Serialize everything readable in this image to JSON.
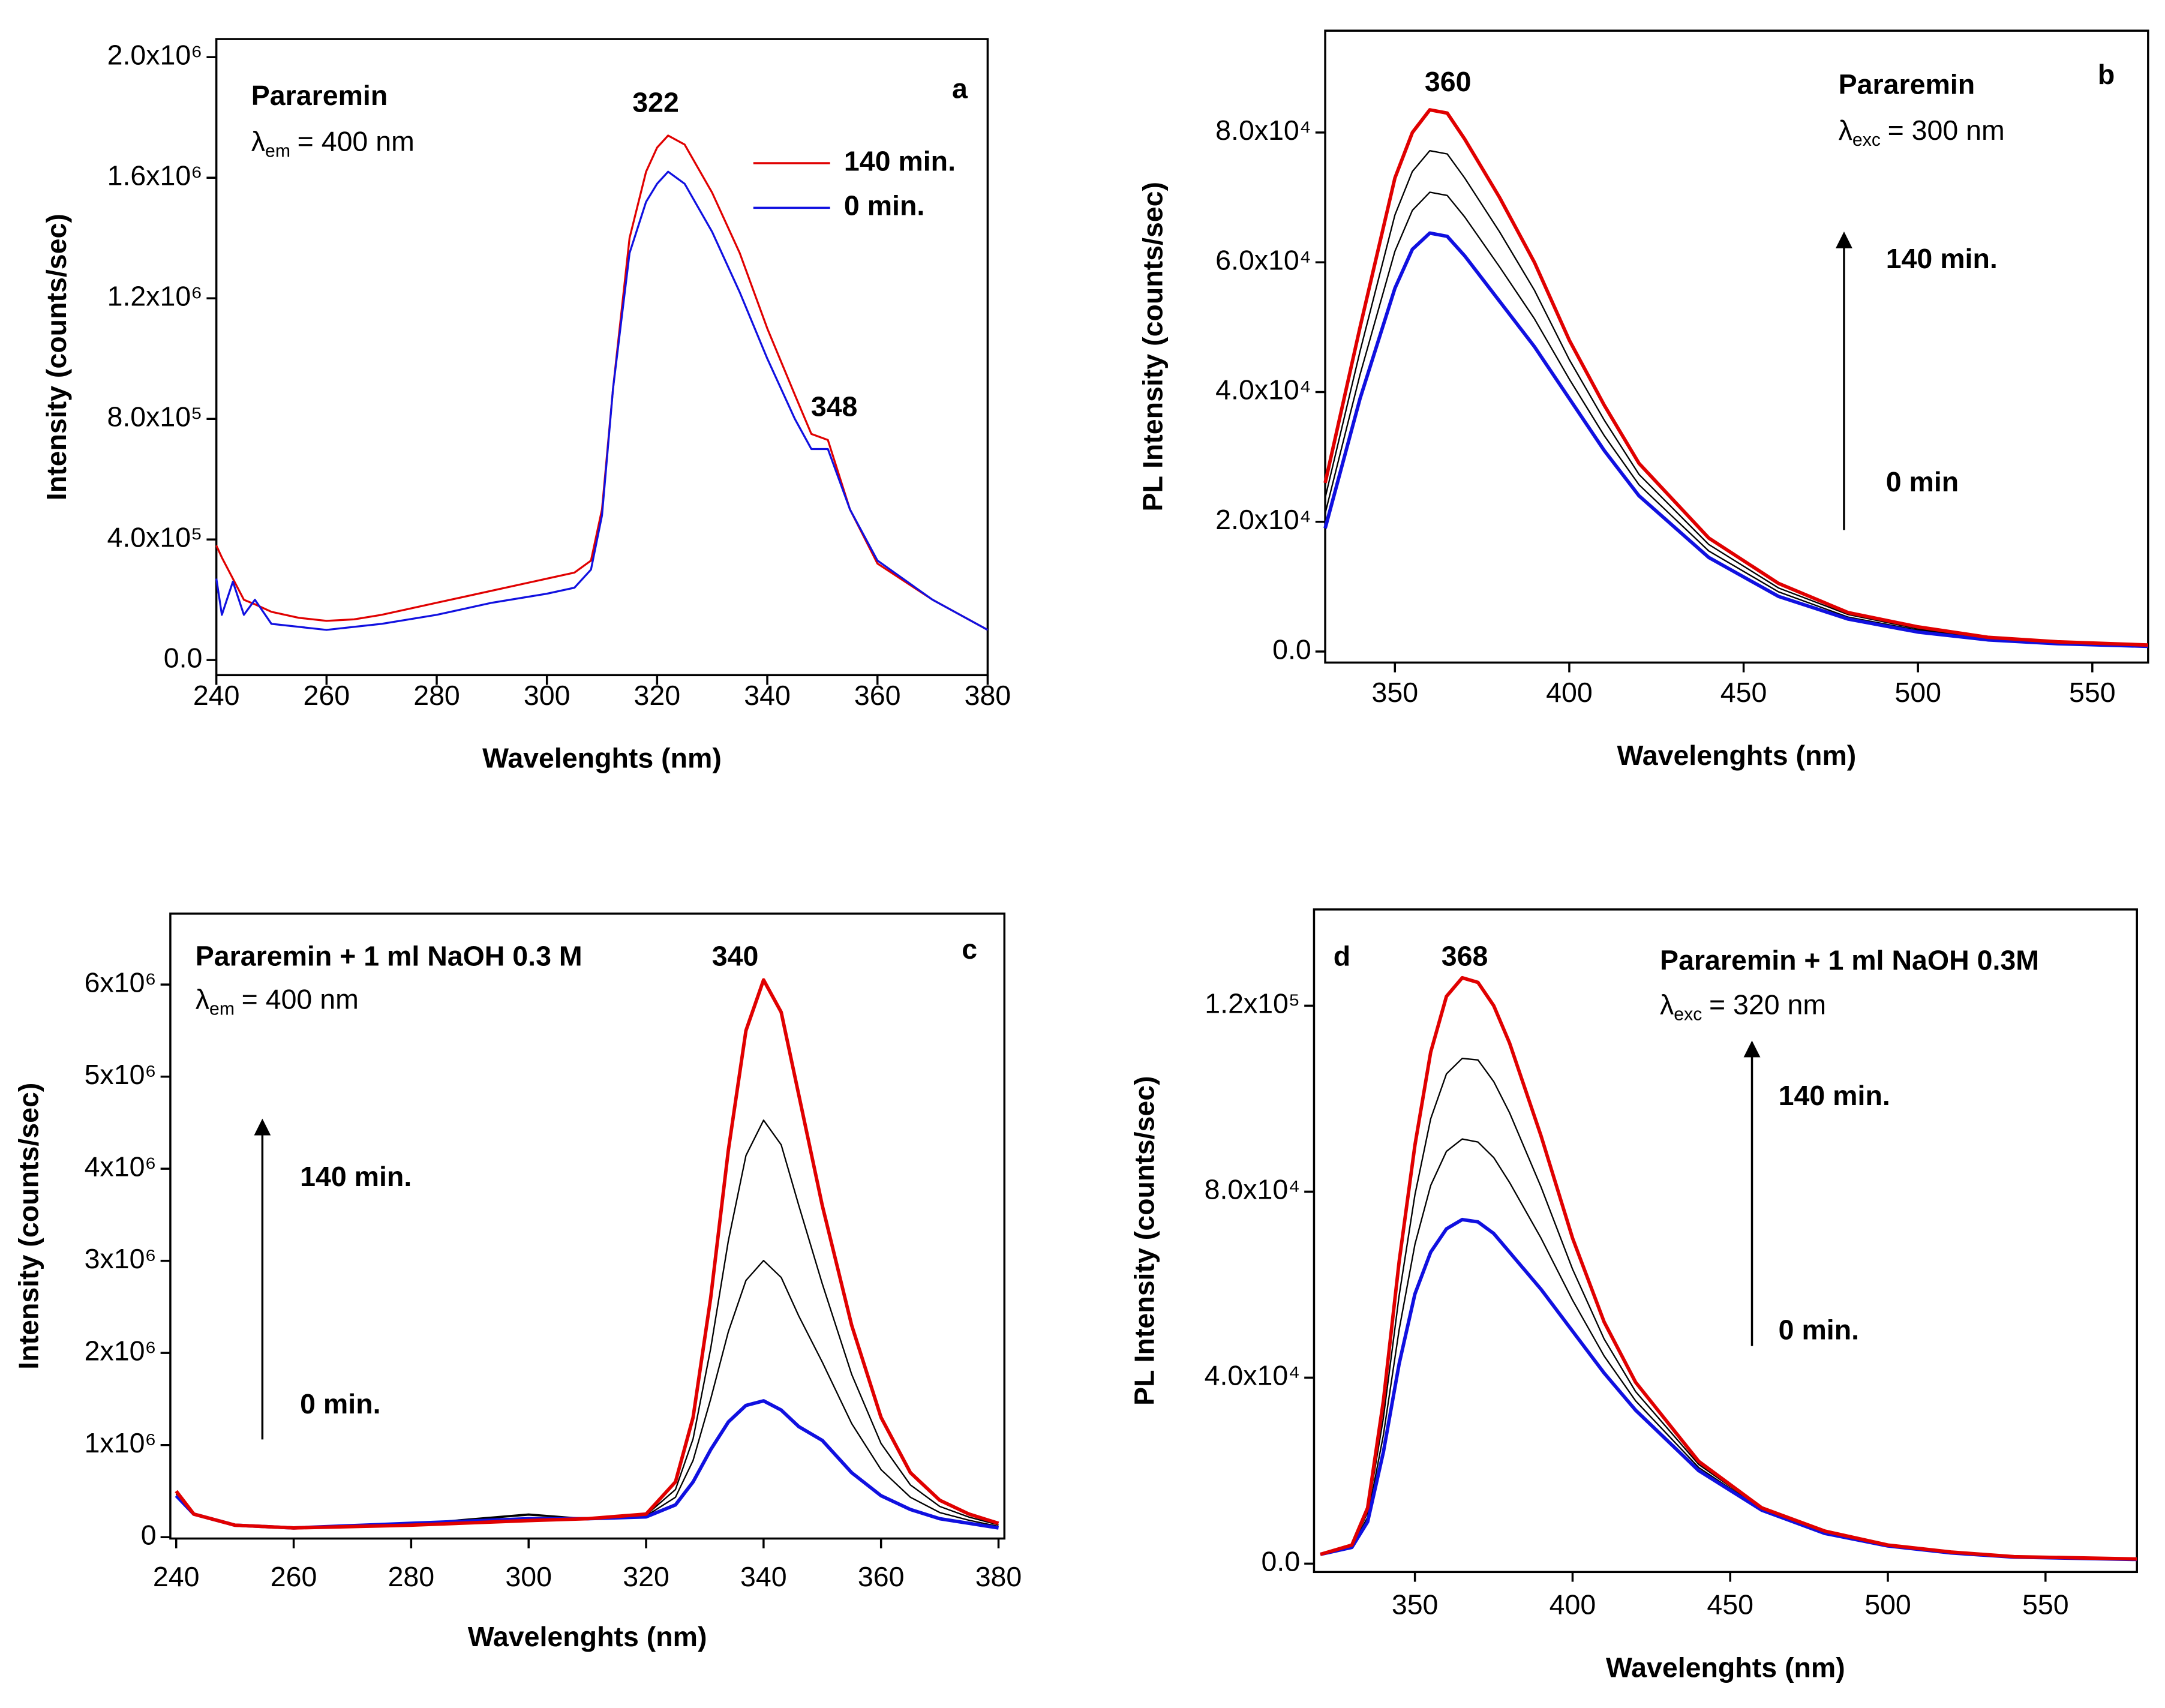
{
  "chart_data": [
    {
      "type": "line",
      "xlabel": "Wavelenghts (nm)",
      "ylabel": "Intensity (counts/sec)",
      "x": [
        240,
        241,
        243,
        245,
        247,
        250,
        255,
        260,
        265,
        270,
        280,
        290,
        300,
        305,
        308,
        310,
        312,
        315,
        318,
        320,
        322,
        325,
        330,
        335,
        340,
        345,
        348,
        351,
        355,
        360,
        370,
        380
      ],
      "series": [
        {
          "name": "140 min.",
          "color": "#e00000",
          "values": [
            380000,
            340000,
            270000,
            200000,
            185000,
            160000,
            140000,
            130000,
            135000,
            150000,
            190000,
            230000,
            270000,
            290000,
            330000,
            500000,
            900000,
            1400000,
            1620000,
            1700000,
            1740000,
            1710000,
            1550000,
            1350000,
            1100000,
            880000,
            750000,
            730000,
            500000,
            320000,
            200000,
            100000
          ]
        },
        {
          "name": "0 min.",
          "color": "#1010e0",
          "values": [
            270000,
            150000,
            260000,
            150000,
            200000,
            120000,
            110000,
            100000,
            110000,
            120000,
            150000,
            190000,
            220000,
            240000,
            300000,
            480000,
            900000,
            1350000,
            1520000,
            1580000,
            1620000,
            1580000,
            1420000,
            1220000,
            1000000,
            800000,
            700000,
            700000,
            500000,
            330000,
            200000,
            100000
          ]
        }
      ],
      "xlim": [
        240,
        380
      ],
      "ylim": [
        -50000,
        2060000
      ],
      "xticks": [
        240,
        260,
        280,
        300,
        320,
        340,
        360,
        380
      ],
      "yticks": [
        {
          "value": 0,
          "label": "0.0"
        },
        {
          "value": 400000,
          "label": "4.0x10⁵"
        },
        {
          "value": 800000,
          "label": "8.0x10⁵"
        },
        {
          "value": 1200000,
          "label": "1.2x10⁶"
        },
        {
          "value": 1600000,
          "label": "1.6x10⁶"
        },
        {
          "value": 2000000,
          "label": "2.0x10⁶"
        }
      ],
      "legend": "upper right",
      "annotations": [
        {
          "text": "Pararemin"
        },
        {
          "symbol": "λ",
          "sub": "em",
          "text": "= 400 nm"
        },
        {
          "text": "322"
        },
        {
          "text": "348"
        },
        {
          "text": "a"
        }
      ]
    },
    {
      "type": "line",
      "xlabel": "Wavelenghts (nm)",
      "ylabel": "PL Intensity (counts/sec)",
      "x": [
        330,
        340,
        350,
        355,
        360,
        365,
        370,
        380,
        390,
        400,
        410,
        420,
        440,
        460,
        480,
        500,
        520,
        540,
        566
      ],
      "series": [
        {
          "color": "#000000",
          "values": [
            21300,
            42700,
            61700,
            68000,
            70800,
            70300,
            67000,
            59300,
            51300,
            42000,
            33300,
            25700,
            15500,
            9200,
            5300,
            3300,
            1900,
            1300,
            900
          ]
        },
        {
          "color": "#000000",
          "values": [
            23700,
            46300,
            67300,
            74000,
            77200,
            76700,
            73000,
            64700,
            55700,
            45000,
            35700,
            27300,
            16500,
            9800,
            5700,
            3500,
            2000,
            1400,
            900
          ]
        },
        {
          "color": "#1010e0",
          "values": [
            19000,
            39000,
            56000,
            62000,
            64500,
            64000,
            61000,
            54000,
            47000,
            39000,
            31000,
            24000,
            14500,
            8500,
            5000,
            3000,
            1800,
            1200,
            800
          ]
        },
        {
          "color": "#e00000",
          "values": [
            26000,
            50000,
            73000,
            80000,
            83500,
            83000,
            79000,
            70000,
            60000,
            48000,
            38000,
            29000,
            17500,
            10500,
            6000,
            3800,
            2200,
            1500,
            1000
          ]
        }
      ],
      "xlim": [
        330,
        566
      ],
      "ylim": [
        -1700,
        95700
      ],
      "xticks": [
        350,
        400,
        450,
        500,
        550
      ],
      "yticks": [
        {
          "value": 0,
          "label": "0.0"
        },
        {
          "value": 20000,
          "label": "2.0x10⁴"
        },
        {
          "value": 40000,
          "label": "4.0x10⁴"
        },
        {
          "value": 60000,
          "label": "6.0x10⁴"
        },
        {
          "value": 80000,
          "label": "8.0x10⁴"
        }
      ],
      "annotations": [
        {
          "text": "Pararemin"
        },
        {
          "symbol": "λ",
          "sub": "exc",
          "text": "= 300 nm"
        },
        {
          "text": "360"
        },
        {
          "text": "b"
        },
        {
          "text": "140 min."
        },
        {
          "text": "0 min"
        }
      ]
    },
    {
      "type": "line",
      "xlabel": "Wavelenghts (nm)",
      "ylabel": "Intensity (counts/sec)",
      "x": [
        240,
        243,
        250,
        260,
        280,
        300,
        310,
        320,
        325,
        328,
        331,
        334,
        337,
        340,
        343,
        346,
        350,
        355,
        360,
        365,
        370,
        375,
        380
      ],
      "series": [
        {
          "color": "#000000",
          "values": [
            467000,
            250000,
            130000,
            100000,
            143000,
            250000,
            200000,
            230000,
            433000,
            833000,
            1500000,
            2230000,
            2787000,
            3003000,
            2820000,
            2400000,
            1900000,
            1233000,
            733000,
            433000,
            267000,
            183000,
            117000
          ]
        },
        {
          "color": "#000000",
          "values": [
            483000,
            250000,
            130000,
            100000,
            137000,
            240000,
            200000,
            240000,
            517000,
            1067000,
            2050000,
            3217000,
            4143000,
            4527000,
            4260000,
            3600000,
            2750000,
            1767000,
            1017000,
            567000,
            333000,
            217000,
            133000
          ]
        },
        {
          "color": "#1010e0",
          "values": [
            450000,
            250000,
            130000,
            100000,
            150000,
            200000,
            200000,
            220000,
            350000,
            600000,
            950000,
            1250000,
            1430000,
            1480000,
            1380000,
            1200000,
            1050000,
            700000,
            450000,
            300000,
            200000,
            150000,
            100000
          ]
        },
        {
          "color": "#e00000",
          "values": [
            500000,
            250000,
            130000,
            100000,
            130000,
            180000,
            200000,
            250000,
            600000,
            1300000,
            2600000,
            4200000,
            5500000,
            6050000,
            5700000,
            4800000,
            3600000,
            2300000,
            1300000,
            700000,
            400000,
            250000,
            150000
          ]
        }
      ],
      "xlim": [
        239,
        381
      ],
      "ylim": [
        -15000,
        6770000
      ],
      "xticks": [
        240,
        260,
        280,
        300,
        320,
        340,
        360,
        380
      ],
      "yticks": [
        0,
        {
          "value": 1000000,
          "label": "1x10⁶"
        },
        {
          "value": 2000000,
          "label": "2x10⁶"
        },
        {
          "value": 3000000,
          "label": "3x10⁶"
        },
        {
          "value": 4000000,
          "label": "4x10⁶"
        },
        {
          "value": 5000000,
          "label": "5x10⁶"
        },
        {
          "value": 6000000,
          "label": "6x10⁶"
        }
      ],
      "annotations": [
        {
          "text": "Pararemin + 1 ml NaOH 0.3 M"
        },
        {
          "symbol": "λ",
          "sub": "em",
          "text": "= 400 nm"
        },
        {
          "text": "340"
        },
        {
          "text": "c"
        },
        {
          "text": "140 min."
        },
        {
          "text": "0 min."
        }
      ]
    },
    {
      "type": "line",
      "xlabel": "Wavelenghts (nm)",
      "ylabel": "PL Intensity (counts/sec)",
      "x": [
        320,
        330,
        335,
        340,
        345,
        350,
        355,
        360,
        365,
        370,
        375,
        380,
        390,
        400,
        410,
        420,
        440,
        460,
        480,
        500,
        520,
        540,
        579
      ],
      "series": [
        {
          "color": "#000000",
          "values": [
            2000,
            3670,
            10000,
            27670,
            50330,
            68670,
            81330,
            88670,
            91330,
            90670,
            87330,
            82000,
            70000,
            56670,
            44670,
            35000,
            20670,
            11670,
            6670,
            3870,
            2370,
            1430,
            930
          ]
        },
        {
          "color": "#000000",
          "values": [
            2000,
            3830,
            11000,
            31330,
            57670,
            79330,
            95670,
            105330,
            108670,
            108330,
            103670,
            97000,
            81000,
            63330,
            48330,
            37000,
            21330,
            11830,
            6830,
            3930,
            2430,
            1470,
            970
          ]
        },
        {
          "color": "#1010e0",
          "values": [
            2000,
            3500,
            9000,
            24000,
            43000,
            58000,
            67000,
            72000,
            74000,
            73500,
            71000,
            67000,
            59000,
            50000,
            41000,
            33000,
            20000,
            11500,
            6500,
            3800,
            2300,
            1400,
            900
          ]
        },
        {
          "color": "#e00000",
          "values": [
            2000,
            4000,
            12000,
            35000,
            65000,
            90000,
            110000,
            122000,
            126000,
            125000,
            120000,
            112000,
            92000,
            70000,
            52000,
            39000,
            22000,
            12000,
            7000,
            4000,
            2500,
            1500,
            1000
          ]
        }
      ],
      "xlim": [
        318,
        579
      ],
      "ylim": [
        -1800,
        140700
      ],
      "xticks": [
        350,
        400,
        450,
        500,
        550
      ],
      "yticks": [
        {
          "value": 0,
          "label": "0.0"
        },
        {
          "value": 40000,
          "label": "4.0x10⁴"
        },
        {
          "value": 80000,
          "label": "8.0x10⁴"
        },
        {
          "value": 120000,
          "label": "1.2x10⁵"
        }
      ],
      "annotations": [
        {
          "text": "d"
        },
        {
          "text": "368"
        },
        {
          "text": "Pararemin + 1 ml NaOH 0.3M"
        },
        {
          "symbol": "λ",
          "sub": "exc",
          "text": "= 320 nm"
        },
        {
          "text": "140 min."
        },
        {
          "text": "0 min."
        }
      ]
    }
  ]
}
